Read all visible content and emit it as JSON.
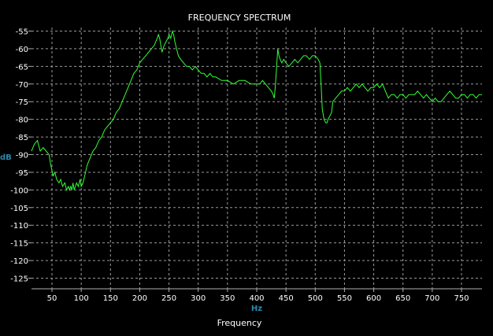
{
  "chart_data": {
    "type": "line",
    "title": "FREQUENCY SPECTRUM",
    "xlabel": "Frequency",
    "xunit": "Hz",
    "yunit": "dB",
    "xlim": [
      15,
      785
    ],
    "ylim": [
      -128,
      -54
    ],
    "xticks": [
      50,
      100,
      150,
      200,
      250,
      300,
      350,
      400,
      450,
      500,
      550,
      600,
      650,
      700,
      750
    ],
    "yticks": [
      -55,
      -60,
      -65,
      -70,
      -75,
      -80,
      -85,
      -90,
      -95,
      -100,
      -105,
      -110,
      -115,
      -120,
      -125
    ],
    "grid": true,
    "colors": {
      "background": "#000000",
      "grid": "#9a9a9a",
      "axis": "#b0b0b0",
      "line": "#33ff33",
      "tick_text": "#ffffff",
      "unit_text": "#2a8aaa"
    },
    "series": [
      {
        "x": [
          15,
          20,
          25,
          30,
          35,
          40,
          45,
          48,
          52,
          55,
          58,
          62,
          65,
          68,
          72,
          75,
          78,
          80,
          82,
          84,
          86,
          88,
          90,
          92,
          95,
          98,
          100,
          103,
          106,
          110,
          115,
          120,
          125,
          130,
          135,
          140,
          145,
          150,
          155,
          160,
          165,
          170,
          175,
          180,
          185,
          190,
          195,
          200,
          205,
          210,
          215,
          220,
          225,
          230,
          232,
          234,
          236,
          238,
          240,
          242,
          245,
          248,
          250,
          253,
          256,
          258,
          260,
          263,
          266,
          270,
          275,
          280,
          285,
          290,
          295,
          300,
          305,
          310,
          315,
          320,
          325,
          330,
          340,
          350,
          360,
          370,
          380,
          390,
          400,
          405,
          410,
          415,
          420,
          425,
          428,
          430,
          432,
          434,
          436,
          438,
          440,
          443,
          446,
          450,
          455,
          460,
          465,
          470,
          475,
          480,
          485,
          490,
          495,
          500,
          505,
          508,
          510,
          512,
          515,
          518,
          520,
          522,
          525,
          528,
          530,
          535,
          540,
          545,
          550,
          555,
          560,
          565,
          570,
          575,
          580,
          585,
          590,
          595,
          600,
          605,
          610,
          615,
          620,
          625,
          630,
          635,
          640,
          645,
          650,
          655,
          660,
          665,
          670,
          675,
          680,
          685,
          690,
          695,
          700,
          705,
          710,
          715,
          720,
          725,
          730,
          735,
          740,
          745,
          750,
          755,
          760,
          765,
          770,
          775,
          780,
          785
        ],
        "values": [
          -89,
          -87,
          -86,
          -89,
          -88,
          -89,
          -90,
          -93,
          -96,
          -95,
          -97,
          -98,
          -97,
          -99,
          -98,
          -100,
          -99,
          -100,
          -99,
          -100,
          -98,
          -100,
          -99,
          -98,
          -99,
          -97,
          -99,
          -98,
          -96,
          -93,
          -91,
          -89,
          -88,
          -86,
          -85,
          -83,
          -82,
          -81,
          -80,
          -78,
          -77,
          -75,
          -73,
          -71,
          -69,
          -67,
          -66,
          -64,
          -63,
          -62,
          -61,
          -60,
          -59,
          -57,
          -56,
          -57,
          -59,
          -61,
          -60,
          -59,
          -58,
          -57,
          -56,
          -57,
          -55,
          -56,
          -58,
          -60,
          -62,
          -63,
          -64,
          -65,
          -65,
          -66,
          -65,
          -66,
          -67,
          -67,
          -68,
          -67,
          -68,
          -68,
          -69,
          -69,
          -70,
          -69,
          -69,
          -70,
          -70,
          -70,
          -69,
          -70,
          -71,
          -72,
          -73,
          -74,
          -70,
          -65,
          -60,
          -62,
          -63,
          -64,
          -63,
          -64,
          -65,
          -64,
          -63,
          -64,
          -63,
          -62,
          -62,
          -63,
          -62,
          -62,
          -63,
          -64,
          -70,
          -77,
          -80,
          -81,
          -81,
          -80,
          -79,
          -78,
          -75,
          -74,
          -73,
          -72,
          -72,
          -71,
          -72,
          -71,
          -70,
          -71,
          -70,
          -71,
          -72,
          -71,
          -71,
          -70,
          -71,
          -70,
          -72,
          -74,
          -73,
          -73,
          -74,
          -73,
          -73,
          -74,
          -73,
          -73,
          -73,
          -72,
          -73,
          -74,
          -73,
          -74,
          -75,
          -74,
          -75,
          -75,
          -74,
          -73,
          -72,
          -73,
          -74,
          -74,
          -73,
          -73,
          -74,
          -73,
          -73,
          -74,
          -73,
          -73
        ]
      }
    ]
  }
}
